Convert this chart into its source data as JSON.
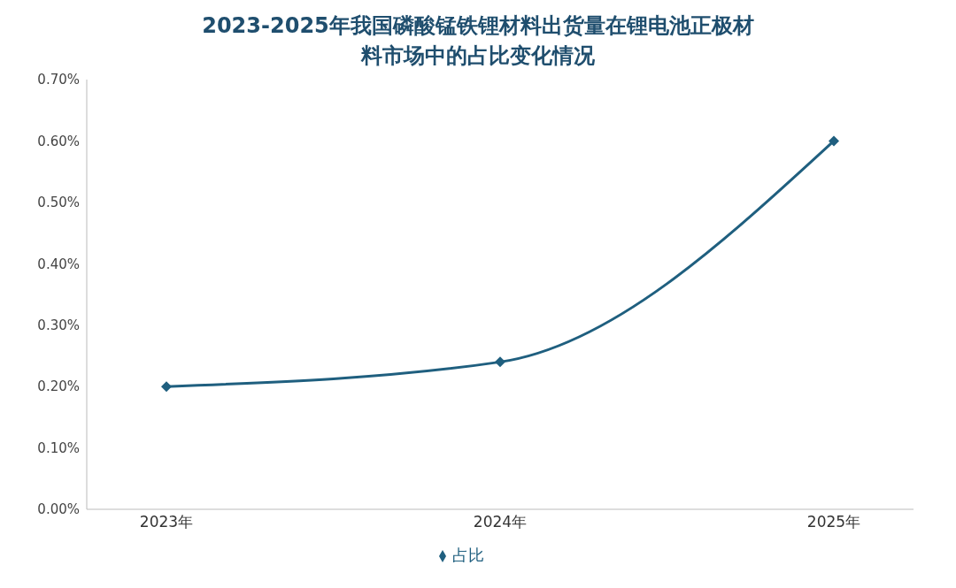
{
  "chart_data": {
    "type": "line",
    "title": "2023-2025年我国磷酸锰铁锂材料出货量在锂电池正极材料市场中的占比变化情况",
    "categories": [
      "2023年",
      "2024年",
      "2025年"
    ],
    "series": [
      {
        "name": "占比",
        "color": "#1f5f7f",
        "values": [
          0.2,
          0.24,
          0.6
        ]
      }
    ],
    "ylim": [
      0,
      0.7
    ],
    "yticks": [
      {
        "value": 0,
        "label": "0.00%"
      },
      {
        "value": 0.1,
        "label": "0.10%"
      },
      {
        "value": 0.2,
        "label": "0.20%"
      },
      {
        "value": 0.3,
        "label": "0.30%"
      },
      {
        "value": 0.4,
        "label": "0.40%"
      },
      {
        "value": 0.5,
        "label": "0.50%"
      },
      {
        "value": 0.6,
        "label": "0.60%"
      },
      {
        "value": 0.7,
        "label": "0.70%"
      }
    ],
    "grid": false,
    "legend": "bottom",
    "marker": "diamond",
    "line_style": "solid"
  }
}
